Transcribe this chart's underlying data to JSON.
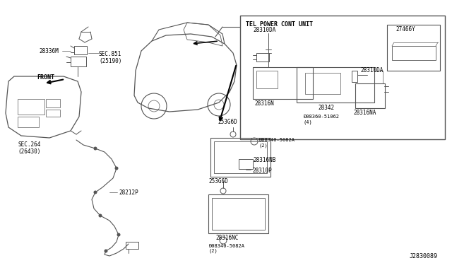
{
  "bg_color": "#ffffff",
  "line_color": "#555555",
  "text_color": "#000000",
  "fig_width": 6.4,
  "fig_height": 3.72,
  "dpi": 100,
  "title": "J2830089",
  "parts": {
    "tel_box_label": "TEL POWER CONT UNIT",
    "p28310DA_1": "28310DA",
    "p28316N": "28316N",
    "p28342": "28342",
    "p28316NA": "28316NA",
    "p27466Y": "27466Y",
    "p28310DA_2": "28310DA",
    "p08360": "Ð08360-51062\n(4)",
    "p253G6D_1": "253G6D",
    "p253G6D_2": "253G6D",
    "p28316NB": "28316NB",
    "p28310P": "28310P",
    "p28316NC": "28316NC",
    "p08340_1": "Ð08340-5082A\n(2)",
    "p08340_2": "Ð08340-5082A\n(2)",
    "p28212P": "28212P",
    "p28336M": "28336M",
    "sec851": "SEC.851\n(25190)",
    "sec264": "SEC.264\n(26430)",
    "front": "FRONT"
  }
}
